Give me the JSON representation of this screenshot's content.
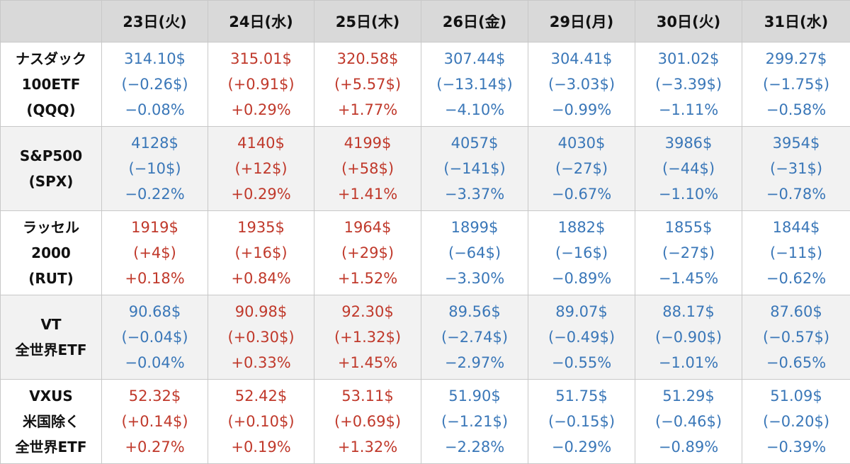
{
  "colors": {
    "up": "#c0392b",
    "down": "#3a77b8",
    "header_bg": "#d9d9d9",
    "alt_row_bg": "#f2f2f2"
  },
  "header": {
    "corner": "",
    "days": [
      "23日(火)",
      "24日(水)",
      "25日(木)",
      "26日(金)",
      "29日(月)",
      "30日(火)",
      "31日(水)"
    ]
  },
  "rows": [
    {
      "label": [
        "ナスダック",
        "100ETF",
        "(QQQ)"
      ],
      "cells": [
        {
          "dir": "down",
          "price": "314.10$",
          "change": "(−0.26$)",
          "pct": "−0.08%"
        },
        {
          "dir": "up",
          "price": "315.01$",
          "change": "(+0.91$)",
          "pct": "+0.29%"
        },
        {
          "dir": "up",
          "price": "320.58$",
          "change": "(+5.57$)",
          "pct": "+1.77%"
        },
        {
          "dir": "down",
          "price": "307.44$",
          "change": "(−13.14$)",
          "pct": "−4.10%"
        },
        {
          "dir": "down",
          "price": "304.41$",
          "change": "(−3.03$)",
          "pct": "−0.99%"
        },
        {
          "dir": "down",
          "price": "301.02$",
          "change": "(−3.39$)",
          "pct": "−1.11%"
        },
        {
          "dir": "down",
          "price": "299.27$",
          "change": "(−1.75$)",
          "pct": "−0.58%"
        }
      ]
    },
    {
      "label": [
        "S&P500",
        "(SPX)"
      ],
      "cells": [
        {
          "dir": "down",
          "price": "4128$",
          "change": "(−10$)",
          "pct": "−0.22%"
        },
        {
          "dir": "up",
          "price": "4140$",
          "change": "(+12$)",
          "pct": "+0.29%"
        },
        {
          "dir": "up",
          "price": "4199$",
          "change": "(+58$)",
          "pct": "+1.41%"
        },
        {
          "dir": "down",
          "price": "4057$",
          "change": "(−141$)",
          "pct": "−3.37%"
        },
        {
          "dir": "down",
          "price": "4030$",
          "change": "(−27$)",
          "pct": "−0.67%"
        },
        {
          "dir": "down",
          "price": "3986$",
          "change": "(−44$)",
          "pct": "−1.10%"
        },
        {
          "dir": "down",
          "price": "3954$",
          "change": "(−31$)",
          "pct": "−0.78%"
        }
      ]
    },
    {
      "label": [
        "ラッセル",
        "2000",
        "(RUT)"
      ],
      "cells": [
        {
          "dir": "up",
          "price": "1919$",
          "change": "(+4$)",
          "pct": "+0.18%"
        },
        {
          "dir": "up",
          "price": "1935$",
          "change": "(+16$)",
          "pct": "+0.84%"
        },
        {
          "dir": "up",
          "price": "1964$",
          "change": "(+29$)",
          "pct": "+1.52%"
        },
        {
          "dir": "down",
          "price": "1899$",
          "change": "(−64$)",
          "pct": "−3.30%"
        },
        {
          "dir": "down",
          "price": "1882$",
          "change": "(−16$)",
          "pct": "−0.89%"
        },
        {
          "dir": "down",
          "price": "1855$",
          "change": "(−27$)",
          "pct": "−1.45%"
        },
        {
          "dir": "down",
          "price": "1844$",
          "change": "(−11$)",
          "pct": "−0.62%"
        }
      ]
    },
    {
      "label": [
        "VT",
        "全世界ETF"
      ],
      "cells": [
        {
          "dir": "down",
          "price": "90.68$",
          "change": "(−0.04$)",
          "pct": "−0.04%"
        },
        {
          "dir": "up",
          "price": "90.98$",
          "change": "(+0.30$)",
          "pct": "+0.33%"
        },
        {
          "dir": "up",
          "price": "92.30$",
          "change": "(+1.32$)",
          "pct": "+1.45%"
        },
        {
          "dir": "down",
          "price": "89.56$",
          "change": "(−2.74$)",
          "pct": "−2.97%"
        },
        {
          "dir": "down",
          "price": "89.07$",
          "change": "(−0.49$)",
          "pct": "−0.55%"
        },
        {
          "dir": "down",
          "price": "88.17$",
          "change": "(−0.90$)",
          "pct": "−1.01%"
        },
        {
          "dir": "down",
          "price": "87.60$",
          "change": "(−0.57$)",
          "pct": "−0.65%"
        }
      ]
    },
    {
      "label": [
        "VXUS",
        "米国除く",
        "全世界ETF"
      ],
      "cells": [
        {
          "dir": "up",
          "price": "52.32$",
          "change": "(+0.14$)",
          "pct": "+0.27%"
        },
        {
          "dir": "up",
          "price": "52.42$",
          "change": "(+0.10$)",
          "pct": "+0.19%"
        },
        {
          "dir": "up",
          "price": "53.11$",
          "change": "(+0.69$)",
          "pct": "+1.32%"
        },
        {
          "dir": "down",
          "price": "51.90$",
          "change": "(−1.21$)",
          "pct": "−2.28%"
        },
        {
          "dir": "down",
          "price": "51.75$",
          "change": "(−0.15$)",
          "pct": "−0.29%"
        },
        {
          "dir": "down",
          "price": "51.29$",
          "change": "(−0.46$)",
          "pct": "−0.89%"
        },
        {
          "dir": "down",
          "price": "51.09$",
          "change": "(−0.20$)",
          "pct": "−0.39%"
        }
      ]
    }
  ]
}
